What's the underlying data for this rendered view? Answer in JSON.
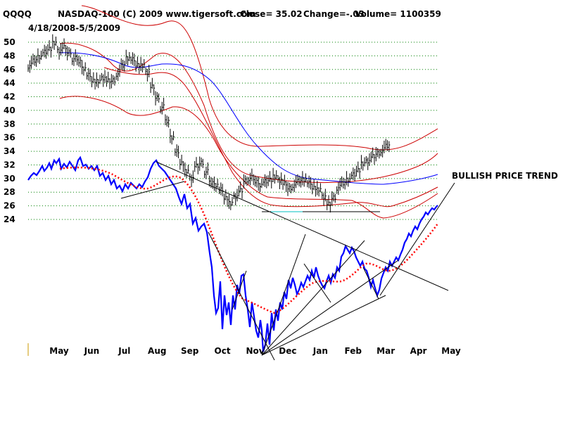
{
  "header": {
    "symbol": "QQQQ",
    "info": "NASDAQ-100  (C) 2009 www.tigersoft.com",
    "close": "Close=  35.02",
    "change": "Change=-.03",
    "volume": "Volume= 1100359",
    "date_range": "4/18/2008-5/5/2009"
  },
  "annotation": "BULLISH PRICE TREND",
  "colors": {
    "price": "#000000",
    "bands": "#cc0000",
    "moving_average_long": "#0000ff",
    "indicator": "#0000ff",
    "indicator_ma": "#ff0000",
    "gridlines": "#008000",
    "trendlines": "#000000"
  },
  "chart_data": {
    "type": "line",
    "title": "NASDAQ-100  (C) 2009 www.tigersoft.com",
    "y_ticks": [
      50,
      48,
      46,
      44,
      42,
      40,
      38,
      36,
      34,
      32,
      30,
      28,
      26,
      24
    ],
    "ylim": [
      24,
      51
    ],
    "x_ticks": [
      "May",
      "Jun",
      "Jul",
      "Aug",
      "Sep",
      "Oct",
      "Nov",
      "Dec",
      "Jan",
      "Feb",
      "Mar",
      "Apr",
      "May"
    ],
    "grid": "horizontal dotted",
    "series": [
      {
        "values": [
          [
            0,
            46.6
          ],
          [
            0.15,
            47.3
          ],
          [
            0.3,
            48
          ],
          [
            0.45,
            48.6
          ],
          [
            0.6,
            49.2
          ],
          [
            0.75,
            49.8
          ],
          [
            0.9,
            48.8
          ],
          [
            1.05,
            49.2
          ],
          [
            1.2,
            48.6
          ],
          [
            1.35,
            47.6
          ],
          [
            1.5,
            47.2
          ],
          [
            1.65,
            46.3
          ],
          [
            1.8,
            45.2
          ],
          [
            1.95,
            44.5
          ],
          [
            2.1,
            44.2
          ],
          [
            2.25,
            44.8
          ],
          [
            2.4,
            44.3
          ],
          [
            2.55,
            44.5
          ],
          [
            2.7,
            45.4
          ],
          [
            2.85,
            46.6
          ],
          [
            3.0,
            47.8
          ],
          [
            3.15,
            47.5
          ],
          [
            3.3,
            46.8
          ],
          [
            3.45,
            46.5
          ],
          [
            3.6,
            45.6
          ],
          [
            3.75,
            43.4
          ],
          [
            3.9,
            42.0
          ],
          [
            4.05,
            40.5
          ],
          [
            4.2,
            38.4
          ],
          [
            4.35,
            36.2
          ],
          [
            4.5,
            34.0
          ],
          [
            4.65,
            32.4
          ],
          [
            4.8,
            31.0
          ],
          [
            4.95,
            30.1
          ],
          [
            5.1,
            31.8
          ],
          [
            5.25,
            32.4
          ],
          [
            5.4,
            31.0
          ],
          [
            5.55,
            29.4
          ],
          [
            5.7,
            29.2
          ],
          [
            5.85,
            28.4
          ],
          [
            6.0,
            27.3
          ],
          [
            6.15,
            26.3
          ],
          [
            6.3,
            27.4
          ],
          [
            6.45,
            28.2
          ],
          [
            6.6,
            29.8
          ],
          [
            6.75,
            30.1
          ],
          [
            6.9,
            29.6
          ],
          [
            7.05,
            29.2
          ],
          [
            7.2,
            29.6
          ],
          [
            7.35,
            30.0
          ],
          [
            7.5,
            30.2
          ],
          [
            7.65,
            29.8
          ],
          [
            7.8,
            29.2
          ],
          [
            7.95,
            28.7
          ],
          [
            8.1,
            29.1
          ],
          [
            8.25,
            29.6
          ],
          [
            8.4,
            30.0
          ],
          [
            8.55,
            29.4
          ],
          [
            8.7,
            28.8
          ],
          [
            8.85,
            28.3
          ],
          [
            9.0,
            27.4
          ],
          [
            9.15,
            26.2
          ],
          [
            9.3,
            27.3
          ],
          [
            9.45,
            28.7
          ],
          [
            9.6,
            29.3
          ],
          [
            9.75,
            30.0
          ],
          [
            9.9,
            30.6
          ],
          [
            10.05,
            31.4
          ],
          [
            10.2,
            32.1
          ],
          [
            10.35,
            32.6
          ],
          [
            10.5,
            33.2
          ],
          [
            10.65,
            33.8
          ],
          [
            10.8,
            34.2
          ],
          [
            10.95,
            34.8
          ]
        ]
      }
    ],
    "trendlines": [
      {
        "from": [
          3.2,
          32.5
        ],
        "to": [
          10.8,
          19.2
        ]
      },
      {
        "from": [
          2.9,
          27.2
        ],
        "to": [
          3.9,
          28.6
        ]
      },
      {
        "from": [
          6.5,
          24.7
        ],
        "to": [
          8.5,
          24.7
        ]
      }
    ]
  }
}
